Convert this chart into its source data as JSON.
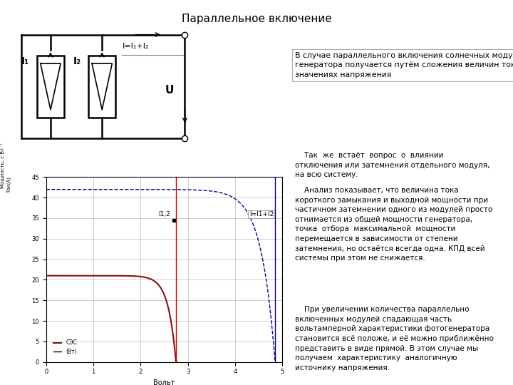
{
  "title": "Параллельное включение",
  "text_box": "В случае параллельного включения солнечных модулей ВАХ\nгенератора получается путём сложения величин токов при равных\nзначениях напряжения",
  "right_text_1": "    Так  же  встаёт  вопрос  о  влиянии\nотключения или затемнения отдельного модуля,\nна всю систему.",
  "right_text_2": "    Анализ показывает, что величина тока\nкороткого замыкания и выходной мощности при\nчастичном затемнении одного из модулей просто\nотнимается из общей мощности генератора,\nточка  отбора  максимальной  мощности\nперемещается в зависимости от степени\nзатемнения, но остаётся всегда одна. КПД всей\nсистемы при этом не снижается.",
  "right_text_3": "    При увеличении количества параллельно\nвключенных модулей спадающая часть\nвольтамперной характеристики фотогенератора\nстановится всё положе, и её можно приближённо\nпредставить в виде прямой. В этом случае мы\nполучаем  характеристику  аналогичную\nисточнику напряжения.",
  "xlabel": "Вольт",
  "xlim": [
    0,
    5
  ],
  "ylim": [
    0,
    45
  ],
  "ytick_labels": [
    "0",
    "",
    "10",
    "",
    "20",
    "25",
    "30",
    "",
    "",
    ""
  ],
  "yticks": [
    0,
    5,
    10,
    15,
    20,
    25,
    30,
    35,
    40,
    45
  ],
  "xticks": [
    0,
    1,
    2,
    3,
    4,
    5
  ],
  "grid_color": "#888888",
  "curve1_color": "#8B1010",
  "curve2_color": "#00008B",
  "vline1_color": "#cc0000",
  "vline2_color": "#000080",
  "background_color": "#ffffff",
  "Isc_single": 21,
  "Isc_double": 42,
  "Voc_single": 2.75,
  "Voc_double": 4.85,
  "label1": "I1,2",
  "label2": "I=I1+I2"
}
